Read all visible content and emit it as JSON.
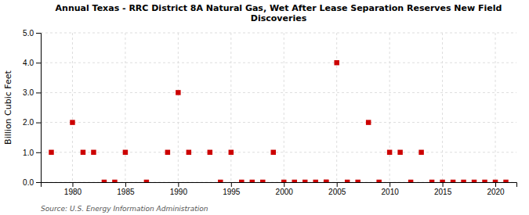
{
  "chart_data": {
    "type": "scatter",
    "title": "Annual Texas - RRC District 8A Natural Gas, Wet After Lease Separation Reserves New Field\nDiscoveries",
    "ylabel": "Billion Cubic Feet",
    "source": "Source: U.S. Energy Information Administration",
    "color": "#cc0000",
    "marker": "square",
    "grid": true,
    "xlim": [
      1977,
      2022
    ],
    "ylim": [
      0.0,
      5.0
    ],
    "xticks": [
      1980,
      1985,
      1990,
      1995,
      2000,
      2005,
      2010,
      2015,
      2020
    ],
    "yticks": [
      {
        "value": 0.0,
        "label": "0.0"
      },
      {
        "value": 1.0,
        "label": "1.0"
      },
      {
        "value": 2.0,
        "label": "2.0"
      },
      {
        "value": 3.0,
        "label": "3.0"
      },
      {
        "value": 4.0,
        "label": "4.0"
      },
      {
        "value": 5.0,
        "label": "5.0"
      }
    ],
    "x": [
      1978,
      1980,
      1981,
      1982,
      1983,
      1984,
      1985,
      1987,
      1989,
      1990,
      1991,
      1993,
      1994,
      1995,
      1996,
      1997,
      1998,
      1999,
      2000,
      2001,
      2002,
      2003,
      2004,
      2004,
      2005,
      2006,
      2007,
      2008,
      2009,
      2010,
      2011,
      2012,
      2013,
      2014,
      2015,
      2016,
      2017,
      2018,
      2019,
      2020,
      2021
    ],
    "values": [
      1.0,
      2.0,
      1.0,
      1.0,
      0.0,
      0.0,
      1.0,
      0.0,
      1.0,
      3.0,
      1.0,
      1.0,
      0.0,
      1.0,
      0.0,
      0.0,
      0.0,
      1.0,
      0.0,
      0.0,
      0.0,
      0.0,
      0.0,
      0.0,
      4.0,
      0.0,
      0.0,
      2.0,
      0.0,
      1.0,
      1.0,
      0.0,
      1.0,
      0.0,
      0.0,
      0.0,
      0.0,
      0.0,
      0.0,
      0.0,
      0.0
    ]
  }
}
